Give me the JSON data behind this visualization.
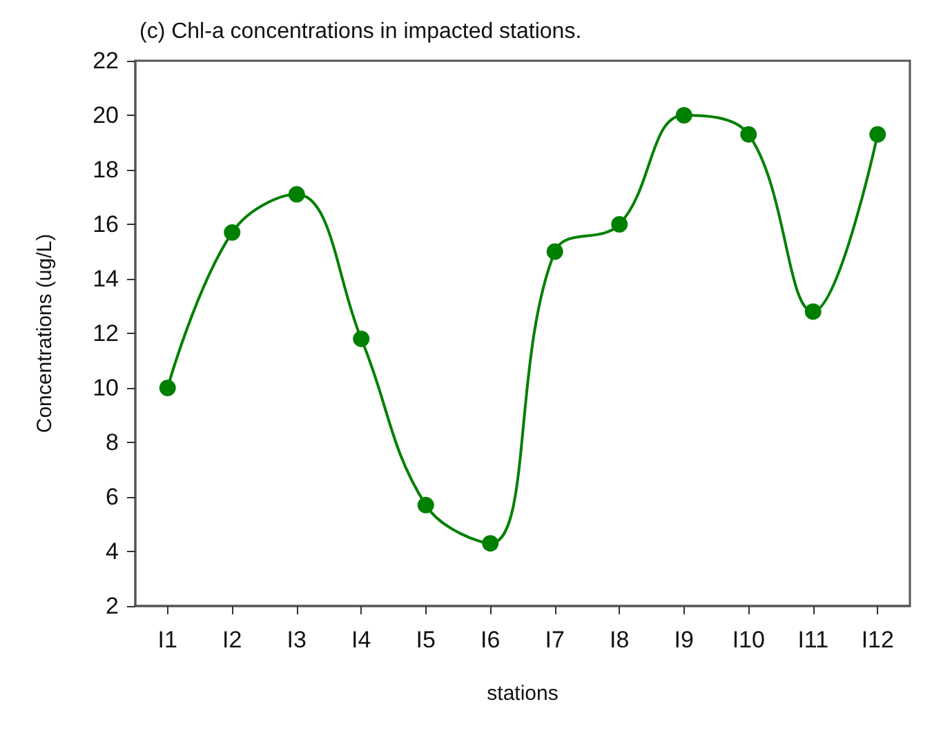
{
  "chart_data": {
    "type": "line",
    "title": "(c) Chl-a concentrations in impacted stations.",
    "xlabel": "stations",
    "ylabel": "Concentrations (ug/L)",
    "categories": [
      "I1",
      "I2",
      "I3",
      "I4",
      "I5",
      "I6",
      "I7",
      "I8",
      "I9",
      "I10",
      "I11",
      "I12"
    ],
    "series": [
      {
        "color": "#008000",
        "values": [
          10,
          15.7,
          17.1,
          11.8,
          5.7,
          4.3,
          15.0,
          16.0,
          20.0,
          19.3,
          12.8,
          19.3
        ]
      }
    ],
    "ylim": [
      2,
      22
    ],
    "yticks": [
      2,
      4,
      6,
      8,
      10,
      12,
      14,
      16,
      18,
      20,
      22
    ],
    "marker": "circle",
    "line_style": "solid"
  }
}
